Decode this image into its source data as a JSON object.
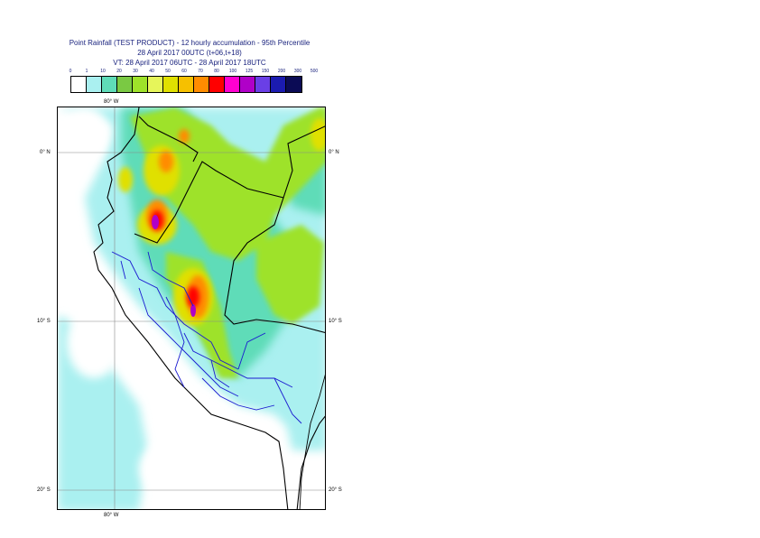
{
  "title": {
    "line1": "Point Rainfall (TEST PRODUCT) - 12 hourly accumulation - 95th Percentile",
    "line2": "28 April 2017 00UTC (t+06,t+18)",
    "line3": "VT: 28 April 2017 06UTC - 28 April 2017 18UTC"
  },
  "legend": {
    "labels": [
      "0",
      "1",
      "10",
      "20",
      "30",
      "40",
      "50",
      "60",
      "70",
      "80",
      "100",
      "125",
      "150",
      "200",
      "300",
      "500"
    ],
    "colors": [
      "#ffffff",
      "#aaf0f0",
      "#5fdcb8",
      "#7ac943",
      "#9ee22a",
      "#e6f55a",
      "#e0e000",
      "#f6c000",
      "#ff8c00",
      "#ff0000",
      "#ff00d0",
      "#b000c8",
      "#6a3fe6",
      "#1b1bb0",
      "#0b0b55"
    ]
  },
  "axes": {
    "lon_top": "80° W",
    "lon_bottom": "80° W",
    "lat_left": [
      "0° N",
      "10° S",
      "20° S"
    ],
    "lat_right": [
      "0° N",
      "10° S",
      "20° S"
    ]
  }
}
